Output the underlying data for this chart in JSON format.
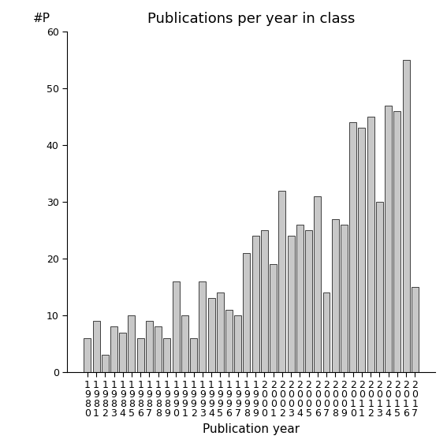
{
  "title": "Publications per year in class",
  "xlabel": "Publication year",
  "ylabel": "#P",
  "years": [
    "1980",
    "1981",
    "1982",
    "1983",
    "1984",
    "1985",
    "1986",
    "1987",
    "1988",
    "1989",
    "1990",
    "1991",
    "1992",
    "1993",
    "1994",
    "1995",
    "1996",
    "1997",
    "1998",
    "1999",
    "2000",
    "2001",
    "2002",
    "2003",
    "2004",
    "2005",
    "2006",
    "2007",
    "2008",
    "2009",
    "2010",
    "2011",
    "2012",
    "2013",
    "2014",
    "2015",
    "2016",
    "2017"
  ],
  "values": [
    6,
    9,
    3,
    8,
    7,
    10,
    6,
    9,
    8,
    6,
    16,
    10,
    6,
    16,
    13,
    14,
    11,
    10,
    21,
    24,
    25,
    19,
    32,
    24,
    26,
    25,
    31,
    14,
    27,
    26,
    44,
    43,
    45,
    30,
    47,
    46,
    55,
    15
  ],
  "bar_color": "#c8c8c8",
  "bar_edgecolor": "#000000",
  "ylim": [
    0,
    60
  ],
  "yticks": [
    0,
    10,
    20,
    30,
    40,
    50,
    60
  ],
  "background_color": "#ffffff",
  "title_fontsize": 13,
  "label_fontsize": 11,
  "tick_fontsize": 9
}
